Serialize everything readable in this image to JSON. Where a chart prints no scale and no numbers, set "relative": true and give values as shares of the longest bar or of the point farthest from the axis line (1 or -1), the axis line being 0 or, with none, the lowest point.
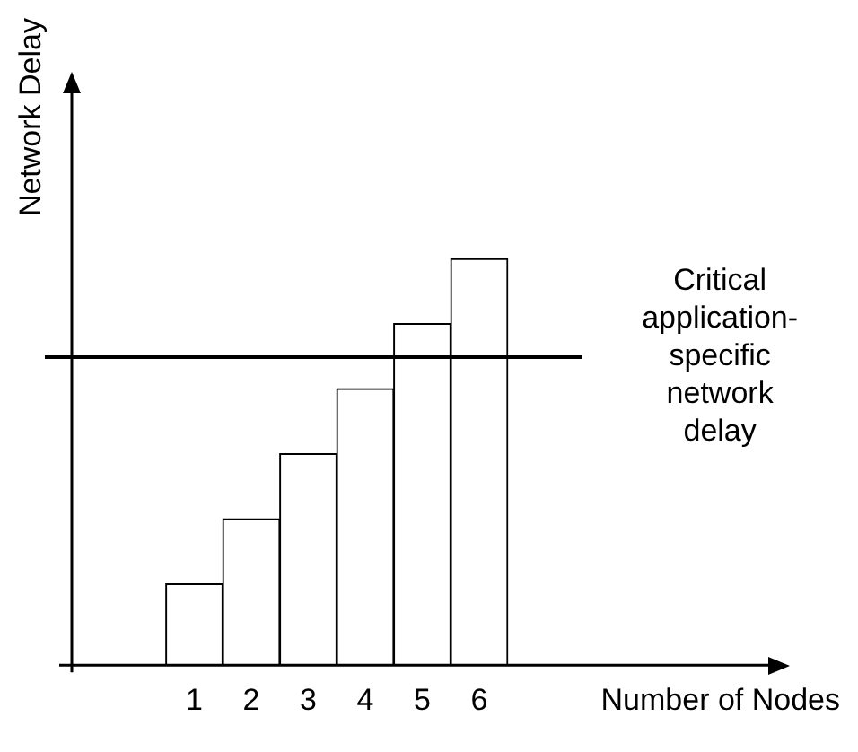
{
  "chart_data": {
    "type": "bar",
    "ylabel": "Network Delay",
    "xlabel": "Number of Nodes",
    "categories": [
      "1",
      "2",
      "3",
      "4",
      "5",
      "6"
    ],
    "values": [
      0.2,
      0.36,
      0.52,
      0.68,
      0.84,
      1
    ],
    "color": "#ffffff",
    "relative": true,
    "ref_lines": [
      {
        "axis": "y",
        "value": 0.76,
        "label": "Critical application-specific network delay",
        "color": "#000000"
      }
    ],
    "grid": false,
    "legend": false
  }
}
